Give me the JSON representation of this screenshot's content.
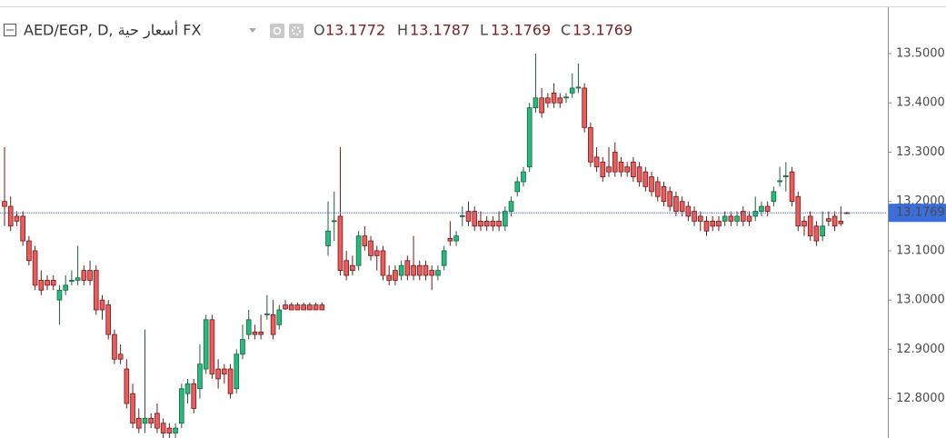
{
  "chart_data": {
    "type": "candlestick",
    "title": "AED/EGP, D, أسعار حية FX",
    "ohlc_legend": [
      {
        "label": "O",
        "value": 13.1772
      },
      {
        "label": "H",
        "value": 13.1787
      },
      {
        "label": "L",
        "value": 13.1769
      },
      {
        "label": "C",
        "value": 13.1769
      }
    ],
    "last_price": 13.1769,
    "up_color": "#22bd7d",
    "down_color": "#ef5b5b",
    "ylim": [
      12.72,
      13.594
    ],
    "yticks": [
      {
        "value": 12.8,
        "label": "12.8000"
      },
      {
        "value": 12.9,
        "label": "12.9000"
      },
      {
        "value": 13.0,
        "label": "13.0000"
      },
      {
        "value": 13.1,
        "label": "13.1000"
      },
      {
        "value": 13.2,
        "label": "13.2000"
      },
      {
        "value": 13.3,
        "label": "13.3000"
      },
      {
        "value": 13.4,
        "label": "13.4000"
      },
      {
        "value": 13.5,
        "label": "13.5000"
      }
    ],
    "candles": [
      [
        13.2,
        13.31,
        13.15,
        13.19
      ],
      [
        13.19,
        13.21,
        13.14,
        13.15
      ],
      [
        13.17,
        13.18,
        13.15,
        13.16
      ],
      [
        13.17,
        13.18,
        13.11,
        13.12
      ],
      [
        13.12,
        13.13,
        13.07,
        13.08
      ],
      [
        13.1,
        13.11,
        13.02,
        13.03
      ],
      [
        13.04,
        13.06,
        13.01,
        13.02
      ],
      [
        13.04,
        13.05,
        13.02,
        13.03
      ],
      [
        13.04,
        13.05,
        13.02,
        13.03
      ],
      [
        13.0,
        13.03,
        12.95,
        13.02
      ],
      [
        13.02,
        13.05,
        13.01,
        13.03
      ],
      [
        13.04,
        13.06,
        13.03,
        13.04
      ],
      [
        13.04,
        13.11,
        13.03,
        13.045
      ],
      [
        13.06,
        13.07,
        13.03,
        13.04
      ],
      [
        13.06,
        13.08,
        13.03,
        13.04
      ],
      [
        13.06,
        13.07,
        12.97,
        12.98
      ],
      [
        13.0,
        13.01,
        12.96,
        12.98
      ],
      [
        12.99,
        13.0,
        12.92,
        12.93
      ],
      [
        12.93,
        12.94,
        12.87,
        12.88
      ],
      [
        12.89,
        12.91,
        12.87,
        12.88
      ],
      [
        12.86,
        12.88,
        12.78,
        12.79
      ],
      [
        12.81,
        12.83,
        12.74,
        12.75
      ],
      [
        12.76,
        12.78,
        12.73,
        12.74
      ],
      [
        12.75,
        12.94,
        12.73,
        12.76
      ],
      [
        12.76,
        12.77,
        12.74,
        12.75
      ],
      [
        12.77,
        12.79,
        12.73,
        12.74
      ],
      [
        12.75,
        12.76,
        12.72,
        12.73
      ],
      [
        12.74,
        12.75,
        12.72,
        12.73
      ],
      [
        12.73,
        12.75,
        12.72,
        12.74
      ],
      [
        12.75,
        12.83,
        12.74,
        12.82
      ],
      [
        12.81,
        12.84,
        12.79,
        12.83
      ],
      [
        12.83,
        12.84,
        12.77,
        12.78
      ],
      [
        12.82,
        12.91,
        12.8,
        12.87
      ],
      [
        12.86,
        12.97,
        12.85,
        12.96
      ],
      [
        12.96,
        12.97,
        12.84,
        12.85
      ],
      [
        12.86,
        12.88,
        12.82,
        12.84
      ],
      [
        12.86,
        12.87,
        12.83,
        12.85
      ],
      [
        12.86,
        12.87,
        12.8,
        12.81
      ],
      [
        12.82,
        12.9,
        12.81,
        12.89
      ],
      [
        12.89,
        12.95,
        12.88,
        12.92
      ],
      [
        12.93,
        12.98,
        12.92,
        12.96
      ],
      [
        12.935,
        12.95,
        12.92,
        12.93
      ],
      [
        12.935,
        12.97,
        12.92,
        12.93
      ],
      [
        12.97,
        13.01,
        12.96,
        12.972
      ],
      [
        12.97,
        13.0,
        12.92,
        12.93
      ],
      [
        12.95,
        12.99,
        12.94,
        12.98
      ],
      [
        12.99,
        13.0,
        12.98,
        12.982
      ],
      [
        12.99,
        12.995,
        12.98,
        12.98
      ],
      [
        12.99,
        12.995,
        12.98,
        12.98
      ],
      [
        12.99,
        12.995,
        12.98,
        12.98
      ],
      [
        12.99,
        12.995,
        12.98,
        12.98
      ],
      [
        12.99,
        12.995,
        12.98,
        12.98
      ],
      [
        12.99,
        12.995,
        12.98,
        12.98
      ],
      [
        13.11,
        13.2,
        13.09,
        13.14
      ],
      [
        13.16,
        13.22,
        13.12,
        13.161
      ],
      [
        13.17,
        13.31,
        13.05,
        13.06
      ],
      [
        13.08,
        13.1,
        13.04,
        13.05
      ],
      [
        13.07,
        13.09,
        13.05,
        13.06
      ],
      [
        13.07,
        13.14,
        13.06,
        13.13
      ],
      [
        13.13,
        13.15,
        13.1,
        13.11
      ],
      [
        13.12,
        13.13,
        13.08,
        13.09
      ],
      [
        13.1,
        13.11,
        13.06,
        13.09
      ],
      [
        13.1,
        13.11,
        13.04,
        13.05
      ],
      [
        13.05,
        13.07,
        13.03,
        13.04
      ],
      [
        13.06,
        13.07,
        13.03,
        13.04
      ],
      [
        13.05,
        13.08,
        13.04,
        13.07
      ],
      [
        13.08,
        13.09,
        13.04,
        13.05
      ],
      [
        13.07,
        13.13,
        13.04,
        13.05
      ],
      [
        13.07,
        13.08,
        13.04,
        13.05
      ],
      [
        13.07,
        13.08,
        13.04,
        13.05
      ],
      [
        13.06,
        13.07,
        13.02,
        13.05
      ],
      [
        13.05,
        13.07,
        13.04,
        13.06
      ],
      [
        13.07,
        13.11,
        13.06,
        13.1
      ],
      [
        13.125,
        13.16,
        13.11,
        13.12
      ],
      [
        13.12,
        13.14,
        13.11,
        13.13
      ],
      [
        13.17,
        13.19,
        13.15,
        13.171
      ],
      [
        13.18,
        13.2,
        13.15,
        13.16
      ],
      [
        13.18,
        13.19,
        13.14,
        13.15
      ],
      [
        13.16,
        13.18,
        13.14,
        13.15
      ],
      [
        13.16,
        13.17,
        13.14,
        13.15
      ],
      [
        13.16,
        13.17,
        13.14,
        13.15
      ],
      [
        13.16,
        13.18,
        13.14,
        13.15
      ],
      [
        13.15,
        13.19,
        13.14,
        13.18
      ],
      [
        13.18,
        13.21,
        13.17,
        13.2
      ],
      [
        13.22,
        13.25,
        13.21,
        13.24
      ],
      [
        13.24,
        13.27,
        13.23,
        13.26
      ],
      [
        13.27,
        13.4,
        13.26,
        13.39
      ],
      [
        13.39,
        13.5,
        13.38,
        13.41
      ],
      [
        13.41,
        13.43,
        13.37,
        13.38
      ],
      [
        13.41,
        13.42,
        13.39,
        13.4
      ],
      [
        13.42,
        13.44,
        13.39,
        13.4
      ],
      [
        13.41,
        13.42,
        13.39,
        13.4
      ],
      [
        13.41,
        13.42,
        13.4,
        13.412
      ],
      [
        13.42,
        13.46,
        13.41,
        13.43
      ],
      [
        13.43,
        13.48,
        13.42,
        13.432
      ],
      [
        13.43,
        13.44,
        13.34,
        13.35
      ],
      [
        13.35,
        13.36,
        13.27,
        13.28
      ],
      [
        13.29,
        13.31,
        13.26,
        13.27
      ],
      [
        13.28,
        13.29,
        13.24,
        13.25
      ],
      [
        13.27,
        13.31,
        13.25,
        13.26
      ],
      [
        13.3,
        13.32,
        13.25,
        13.26
      ],
      [
        13.28,
        13.29,
        13.25,
        13.26
      ],
      [
        13.27,
        13.28,
        13.25,
        13.26
      ],
      [
        13.28,
        13.29,
        13.24,
        13.25
      ],
      [
        13.27,
        13.28,
        13.23,
        13.24
      ],
      [
        13.26,
        13.27,
        13.22,
        13.23
      ],
      [
        13.25,
        13.26,
        13.21,
        13.22
      ],
      [
        13.24,
        13.25,
        13.2,
        13.21
      ],
      [
        13.23,
        13.24,
        13.19,
        13.2
      ],
      [
        13.22,
        13.23,
        13.18,
        13.19
      ],
      [
        13.21,
        13.22,
        13.17,
        13.18
      ],
      [
        13.2,
        13.21,
        13.17,
        13.18
      ],
      [
        13.19,
        13.2,
        13.16,
        13.17
      ],
      [
        13.18,
        13.19,
        13.15,
        13.16
      ],
      [
        13.17,
        13.18,
        13.14,
        13.16
      ],
      [
        13.16,
        13.17,
        13.13,
        13.14
      ],
      [
        13.16,
        13.17,
        13.14,
        13.15
      ],
      [
        13.16,
        13.17,
        13.14,
        13.15
      ],
      [
        13.16,
        13.18,
        13.15,
        13.17
      ],
      [
        13.17,
        13.18,
        13.15,
        13.16
      ],
      [
        13.16,
        13.18,
        13.15,
        13.17
      ],
      [
        13.18,
        13.19,
        13.15,
        13.16
      ],
      [
        13.17,
        13.18,
        13.15,
        13.16
      ],
      [
        13.17,
        13.21,
        13.16,
        13.18
      ],
      [
        13.18,
        13.2,
        13.17,
        13.19
      ],
      [
        13.19,
        13.2,
        13.17,
        13.18
      ],
      [
        13.2,
        13.23,
        13.19,
        13.22
      ],
      [
        13.24,
        13.27,
        13.23,
        13.242
      ],
      [
        13.25,
        13.28,
        13.22,
        13.252
      ],
      [
        13.26,
        13.27,
        13.19,
        13.2
      ],
      [
        13.21,
        13.22,
        13.14,
        13.15
      ],
      [
        13.16,
        13.17,
        13.13,
        13.15
      ],
      [
        13.17,
        13.18,
        13.12,
        13.13
      ],
      [
        13.15,
        13.16,
        13.11,
        13.12
      ],
      [
        13.13,
        13.18,
        13.12,
        13.15
      ],
      [
        13.165,
        13.18,
        13.15,
        13.16
      ],
      [
        13.17,
        13.18,
        13.14,
        13.15
      ],
      [
        13.16,
        13.19,
        13.15,
        13.155
      ],
      [
        13.1772,
        13.1787,
        13.1769,
        13.1769
      ]
    ]
  }
}
